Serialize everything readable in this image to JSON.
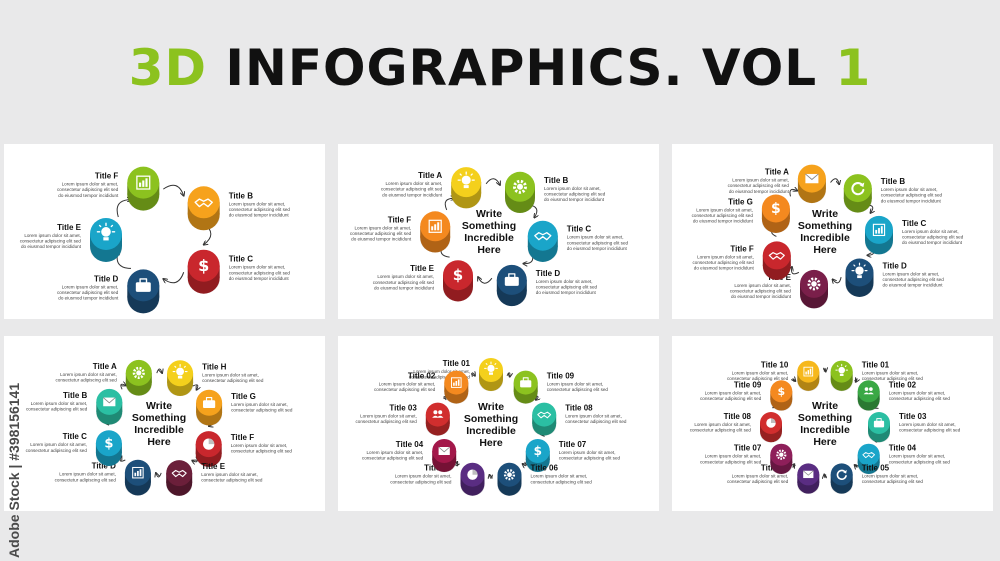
{
  "headline": {
    "part1": "3D",
    "part2": "INFOGRAPHICS. VOL",
    "part3": "1"
  },
  "watermark": "Adobe Stock | #398156141",
  "body_text": [
    "Lorem ipsum dolor sit amet,",
    "consectetur adipiscing elit sed",
    "do eiusmod tempor incididunt"
  ],
  "center_text": [
    "Write",
    "Something",
    "Incredible",
    "Here"
  ],
  "colors": {
    "headline_accent": "#8cc21f",
    "headline": "#111111",
    "panel_bg": "#ffffff",
    "page_bg": "#e9e9ea"
  },
  "panels": [
    {
      "center": false,
      "items": [
        {
          "title": "Title F",
          "color": "#8cc21f",
          "icon": "chart-icon"
        },
        {
          "title": "Title B",
          "color": "#f6a21c",
          "icon": "handshake-icon"
        },
        {
          "title": "Title C",
          "color": "#c9272d",
          "icon": "dollar-icon"
        },
        {
          "title": "Title D",
          "color": "#1d4f7a",
          "icon": "briefcase-icon"
        },
        {
          "title": "Title E",
          "color": "#1aa5c9",
          "icon": "bulb-icon"
        }
      ]
    },
    {
      "center": true,
      "items": [
        {
          "title": "Title A",
          "color": "#f4d01c",
          "icon": "bulb-icon"
        },
        {
          "title": "Title B",
          "color": "#8cc21f",
          "icon": "gear-icon"
        },
        {
          "title": "Title C",
          "color": "#1aa5c9",
          "icon": "handshake-icon"
        },
        {
          "title": "Title D",
          "color": "#1d4f7a",
          "icon": "briefcase-icon"
        },
        {
          "title": "Title E",
          "color": "#c9272d",
          "icon": "dollar-icon"
        },
        {
          "title": "Title F",
          "color": "#f4891f",
          "icon": "chart-icon"
        }
      ]
    },
    {
      "center": true,
      "items": [
        {
          "title": "Title A",
          "color": "#f6a21c",
          "icon": "mail-icon"
        },
        {
          "title": "Title B",
          "color": "#8cc21f",
          "icon": "refresh-icon"
        },
        {
          "title": "Title C",
          "color": "#1aa5c9",
          "icon": "chart-icon"
        },
        {
          "title": "Title D",
          "color": "#1d4f7a",
          "icon": "bulb-icon"
        },
        {
          "title": "Title E",
          "color": "#7a1f4a",
          "icon": "gear-icon"
        },
        {
          "title": "Title F",
          "color": "#c9272d",
          "icon": "handshake-icon"
        },
        {
          "title": "Title G",
          "color": "#f4891f",
          "icon": "dollar-icon"
        }
      ]
    },
    {
      "center": true,
      "items": [
        {
          "title": "Title A",
          "color": "#8cc21f",
          "icon": "gear-icon"
        },
        {
          "title": "Title H",
          "color": "#f4d01c",
          "icon": "bulb-icon"
        },
        {
          "title": "Title G",
          "color": "#f6a21c",
          "icon": "briefcase-icon"
        },
        {
          "title": "Title F",
          "color": "#c9272d",
          "icon": "pie-icon"
        },
        {
          "title": "Title E",
          "color": "#6b1f3a",
          "icon": "handshake-icon"
        },
        {
          "title": "Title D",
          "color": "#1d4f7a",
          "icon": "chart-icon"
        },
        {
          "title": "Title C",
          "color": "#1aa5c9",
          "icon": "dollar-icon"
        },
        {
          "title": "Title B",
          "color": "#2bbfa3",
          "icon": "mail-icon"
        }
      ]
    },
    {
      "center": true,
      "items": [
        {
          "title": "Title 01",
          "color": "#f4d01c",
          "icon": "bulb-icon"
        },
        {
          "title": "Title 09",
          "color": "#8cc21f",
          "icon": "briefcase-icon"
        },
        {
          "title": "Title 08",
          "color": "#2bbfa3",
          "icon": "handshake-icon"
        },
        {
          "title": "Title 07",
          "color": "#1aa5c9",
          "icon": "dollar-icon"
        },
        {
          "title": "Title 06",
          "color": "#1d4f7a",
          "icon": "gear-icon"
        },
        {
          "title": "Title 05",
          "color": "#5a2d82",
          "icon": "pie-icon"
        },
        {
          "title": "Title 04",
          "color": "#a3184a",
          "icon": "mail-icon"
        },
        {
          "title": "Title 03",
          "color": "#d12e2e",
          "icon": "users-icon"
        },
        {
          "title": "Title 02",
          "color": "#f4891f",
          "icon": "chart-icon"
        }
      ]
    },
    {
      "center": true,
      "items": [
        {
          "title": "Title 01",
          "color": "#8cc21f",
          "icon": "bulb-icon"
        },
        {
          "title": "Title 02",
          "color": "#3aa845",
          "icon": "users-icon"
        },
        {
          "title": "Title 03",
          "color": "#2bbfa3",
          "icon": "briefcase-icon"
        },
        {
          "title": "Title 04",
          "color": "#1aa5c9",
          "icon": "handshake-icon"
        },
        {
          "title": "Title 05",
          "color": "#1d4f7a",
          "icon": "refresh-icon"
        },
        {
          "title": "Title 06",
          "color": "#5a2d82",
          "icon": "mail-icon"
        },
        {
          "title": "Title 07",
          "color": "#8e1f5a",
          "icon": "gear-icon"
        },
        {
          "title": "Title 08",
          "color": "#d12e2e",
          "icon": "pie-icon"
        },
        {
          "title": "Title 09",
          "color": "#f4891f",
          "icon": "dollar-icon"
        },
        {
          "title": "Title 10",
          "color": "#f6b81c",
          "icon": "chart-icon"
        }
      ]
    }
  ]
}
